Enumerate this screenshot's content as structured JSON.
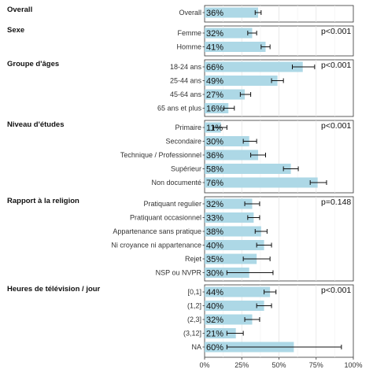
{
  "chart_data": {
    "type": "bar",
    "orientation": "horizontal",
    "xlim": [
      0,
      100
    ],
    "x_ticks": [
      "0%",
      "25%",
      "50%",
      "75%",
      "100%"
    ],
    "grid": true,
    "bar_color": "#add8e6",
    "groups": [
      {
        "title": "Overall",
        "pvalue": "",
        "categories": [
          "Overall"
        ],
        "values": [
          36
        ],
        "labels": [
          "36%"
        ],
        "ci_low": [
          34
        ],
        "ci_high": [
          38
        ]
      },
      {
        "title": "Sexe",
        "pvalue": "p<0.001",
        "categories": [
          "Femme",
          "Homme"
        ],
        "values": [
          32,
          41
        ],
        "labels": [
          "32%",
          "41%"
        ],
        "ci_low": [
          29,
          38
        ],
        "ci_high": [
          35,
          44
        ]
      },
      {
        "title": "Groupe d'âges",
        "pvalue": "p<0.001",
        "categories": [
          "18-24 ans",
          "25-44 ans",
          "45-64 ans",
          "65 ans et plus"
        ],
        "values": [
          66,
          49,
          27,
          16
        ],
        "labels": [
          "66%",
          "49%",
          "27%",
          "16%"
        ],
        "ci_low": [
          59,
          45,
          24,
          13
        ],
        "ci_high": [
          74,
          53,
          31,
          20
        ]
      },
      {
        "title": "Niveau d'études",
        "pvalue": "p<0.001",
        "categories": [
          "Primaire",
          "Secondaire",
          "Technique / Professionnel",
          "Supérieur",
          "Non documenté"
        ],
        "values": [
          11,
          30,
          36,
          58,
          76
        ],
        "labels": [
          "11%",
          "30%",
          "36%",
          "58%",
          "76%"
        ],
        "ci_low": [
          6,
          26,
          31,
          53,
          71
        ],
        "ci_high": [
          15,
          35,
          41,
          63,
          82
        ]
      },
      {
        "title": "Rapport à la religion",
        "pvalue": "p=0.148",
        "categories": [
          "Pratiquant regulier",
          "Pratiquant occasionnel",
          "Appartenance sans pratique",
          "Ni croyance ni appartenance",
          "Rejet",
          "NSP ou NVPR"
        ],
        "values": [
          32,
          33,
          38,
          40,
          35,
          30
        ],
        "labels": [
          "32%",
          "33%",
          "38%",
          "40%",
          "35%",
          "30%"
        ],
        "ci_low": [
          27,
          29,
          34,
          35,
          26,
          15
        ],
        "ci_high": [
          37,
          37,
          42,
          45,
          44,
          46
        ]
      },
      {
        "title": "Heures de télévision / jour",
        "pvalue": "p<0.001",
        "categories": [
          "[0,1]",
          "(1,2]",
          "(2,3]",
          "(3,12]",
          "NA"
        ],
        "values": [
          44,
          40,
          32,
          21,
          60
        ],
        "labels": [
          "44%",
          "40%",
          "32%",
          "21%",
          "60%"
        ],
        "ci_low": [
          40,
          35,
          27,
          15,
          15
        ],
        "ci_high": [
          48,
          45,
          37,
          26,
          92
        ]
      }
    ]
  }
}
